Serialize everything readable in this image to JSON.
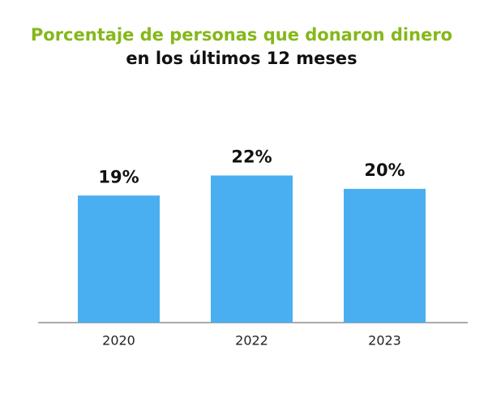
{
  "chart_data": {
    "type": "bar",
    "title": "Porcentaje de personas que donaron dinero",
    "subtitle": "en los últimos 12 meses",
    "categories": [
      "2020",
      "2022",
      "2023"
    ],
    "values": [
      19,
      22,
      20
    ],
    "value_labels": [
      "19%",
      "22%",
      "20%"
    ],
    "color": "#4aaff0"
  }
}
